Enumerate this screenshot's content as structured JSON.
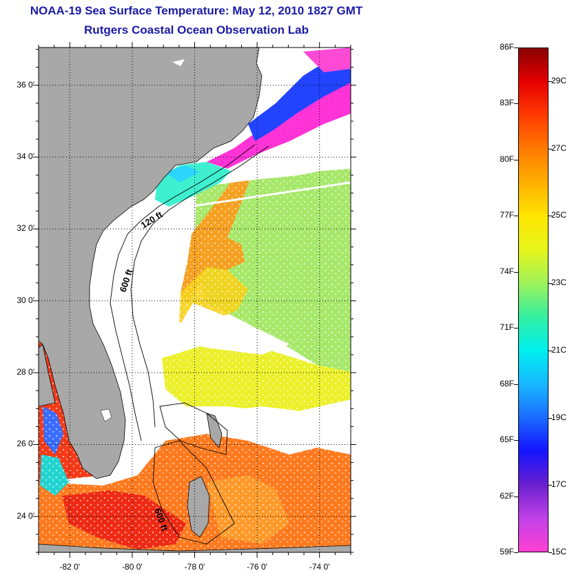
{
  "title": {
    "line1": "NOAA-19 Sea Surface Temperature:  May 12, 2010 1827 GMT",
    "line2": "Rutgers Coastal Ocean Observation Lab"
  },
  "map": {
    "lat_labels": [
      "36 0'",
      "34 0'",
      "32 0'",
      "30 0'",
      "28 0'",
      "26 0'",
      "24 0'"
    ],
    "lat_values": [
      36,
      34,
      32,
      30,
      28,
      26,
      24
    ],
    "lon_labels": [
      "-82 0'",
      "-80 0'",
      "-78 0'",
      "-76 0'",
      "-74 0'"
    ],
    "lon_values": [
      -82,
      -80,
      -78,
      -76,
      -74
    ],
    "lat_range": [
      23,
      37.05
    ],
    "lon_range": [
      -83,
      -73
    ],
    "contour_labels": [
      "120 ft",
      "600 ft",
      "600 ft"
    ],
    "colors": {
      "land": "#a8a8a8",
      "cloud": "#ffffff",
      "gulf_stream": "#f59a1a",
      "shelf_cold": "#ff2ad8",
      "shelf_blue": "#1e3cff"
    }
  },
  "colorbar": {
    "fahrenheit": [
      "86F",
      "83F",
      "80F",
      "77F",
      "74F",
      "71F",
      "68F",
      "65F",
      "62F",
      "59F"
    ],
    "celsius": [
      "29C",
      "27C",
      "25C",
      "23C",
      "21C",
      "19C",
      "17C",
      "15C"
    ],
    "range_f": [
      59,
      86
    ],
    "colors_bottom_to_top": [
      "#ff3fd4",
      "#c042e8",
      "#6a1fcf",
      "#1414ff",
      "#1b6bff",
      "#18b8ff",
      "#00f0f0",
      "#33f0a0",
      "#9ef25a",
      "#e7f51b",
      "#ffe600",
      "#ffb000",
      "#ff7a00",
      "#ff3a00",
      "#e60000",
      "#8a0000"
    ]
  }
}
